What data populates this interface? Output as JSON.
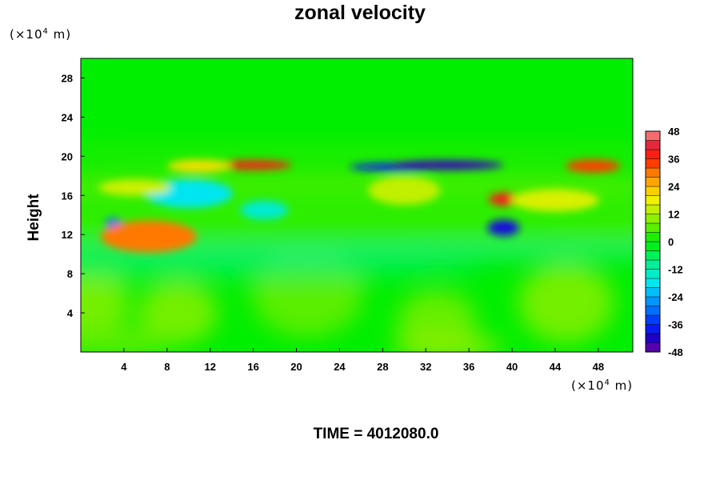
{
  "chart_data": {
    "type": "heatmap",
    "title": "zonal velocity",
    "ylabel": "Height",
    "xlabel": "",
    "x_unit_prefix": "(×10",
    "x_unit_exp": "4",
    "x_unit_suffix": " m)",
    "y_unit_prefix": "(×10",
    "y_unit_exp": "4",
    "y_unit_suffix": " m)",
    "xlim": [
      0,
      51.2
    ],
    "ylim": [
      0,
      30
    ],
    "x_ticks": [
      4,
      8,
      12,
      16,
      20,
      24,
      28,
      32,
      36,
      40,
      44,
      48
    ],
    "y_ticks": [
      4,
      8,
      12,
      16,
      20,
      24,
      28
    ],
    "colorbar": {
      "min": -48,
      "max": 48,
      "step": 4,
      "tick_labels": [
        "48",
        "36",
        "24",
        "12",
        "0",
        "-12",
        "-24",
        "-36",
        "-48"
      ]
    },
    "features": [
      {
        "x": 16,
        "y": 19.1,
        "value": 38
      },
      {
        "x": 11,
        "y": 19.0,
        "value": 20
      },
      {
        "x": 47.5,
        "y": 19.0,
        "value": 34
      },
      {
        "x": 29,
        "y": 18.9,
        "value": -38
      },
      {
        "x": 34,
        "y": 19.1,
        "value": -44
      },
      {
        "x": 39.3,
        "y": 15.6,
        "value": 38
      },
      {
        "x": 39.2,
        "y": 12.7,
        "value": -40
      },
      {
        "x": 3,
        "y": 13.2,
        "value": -30
      },
      {
        "x": 6.3,
        "y": 11.8,
        "value": 30
      },
      {
        "x": 10,
        "y": 16.2,
        "value": -18
      },
      {
        "x": 17,
        "y": 14.5,
        "value": -15
      },
      {
        "x": 5,
        "y": 16.8,
        "value": 15
      },
      {
        "x": 30,
        "y": 16.5,
        "value": 14
      },
      {
        "x": 44,
        "y": 15.5,
        "value": 16
      }
    ],
    "grid": false,
    "legend": "colorbar-right"
  },
  "footer": {
    "time_label": "TIME = 4012080.0"
  }
}
